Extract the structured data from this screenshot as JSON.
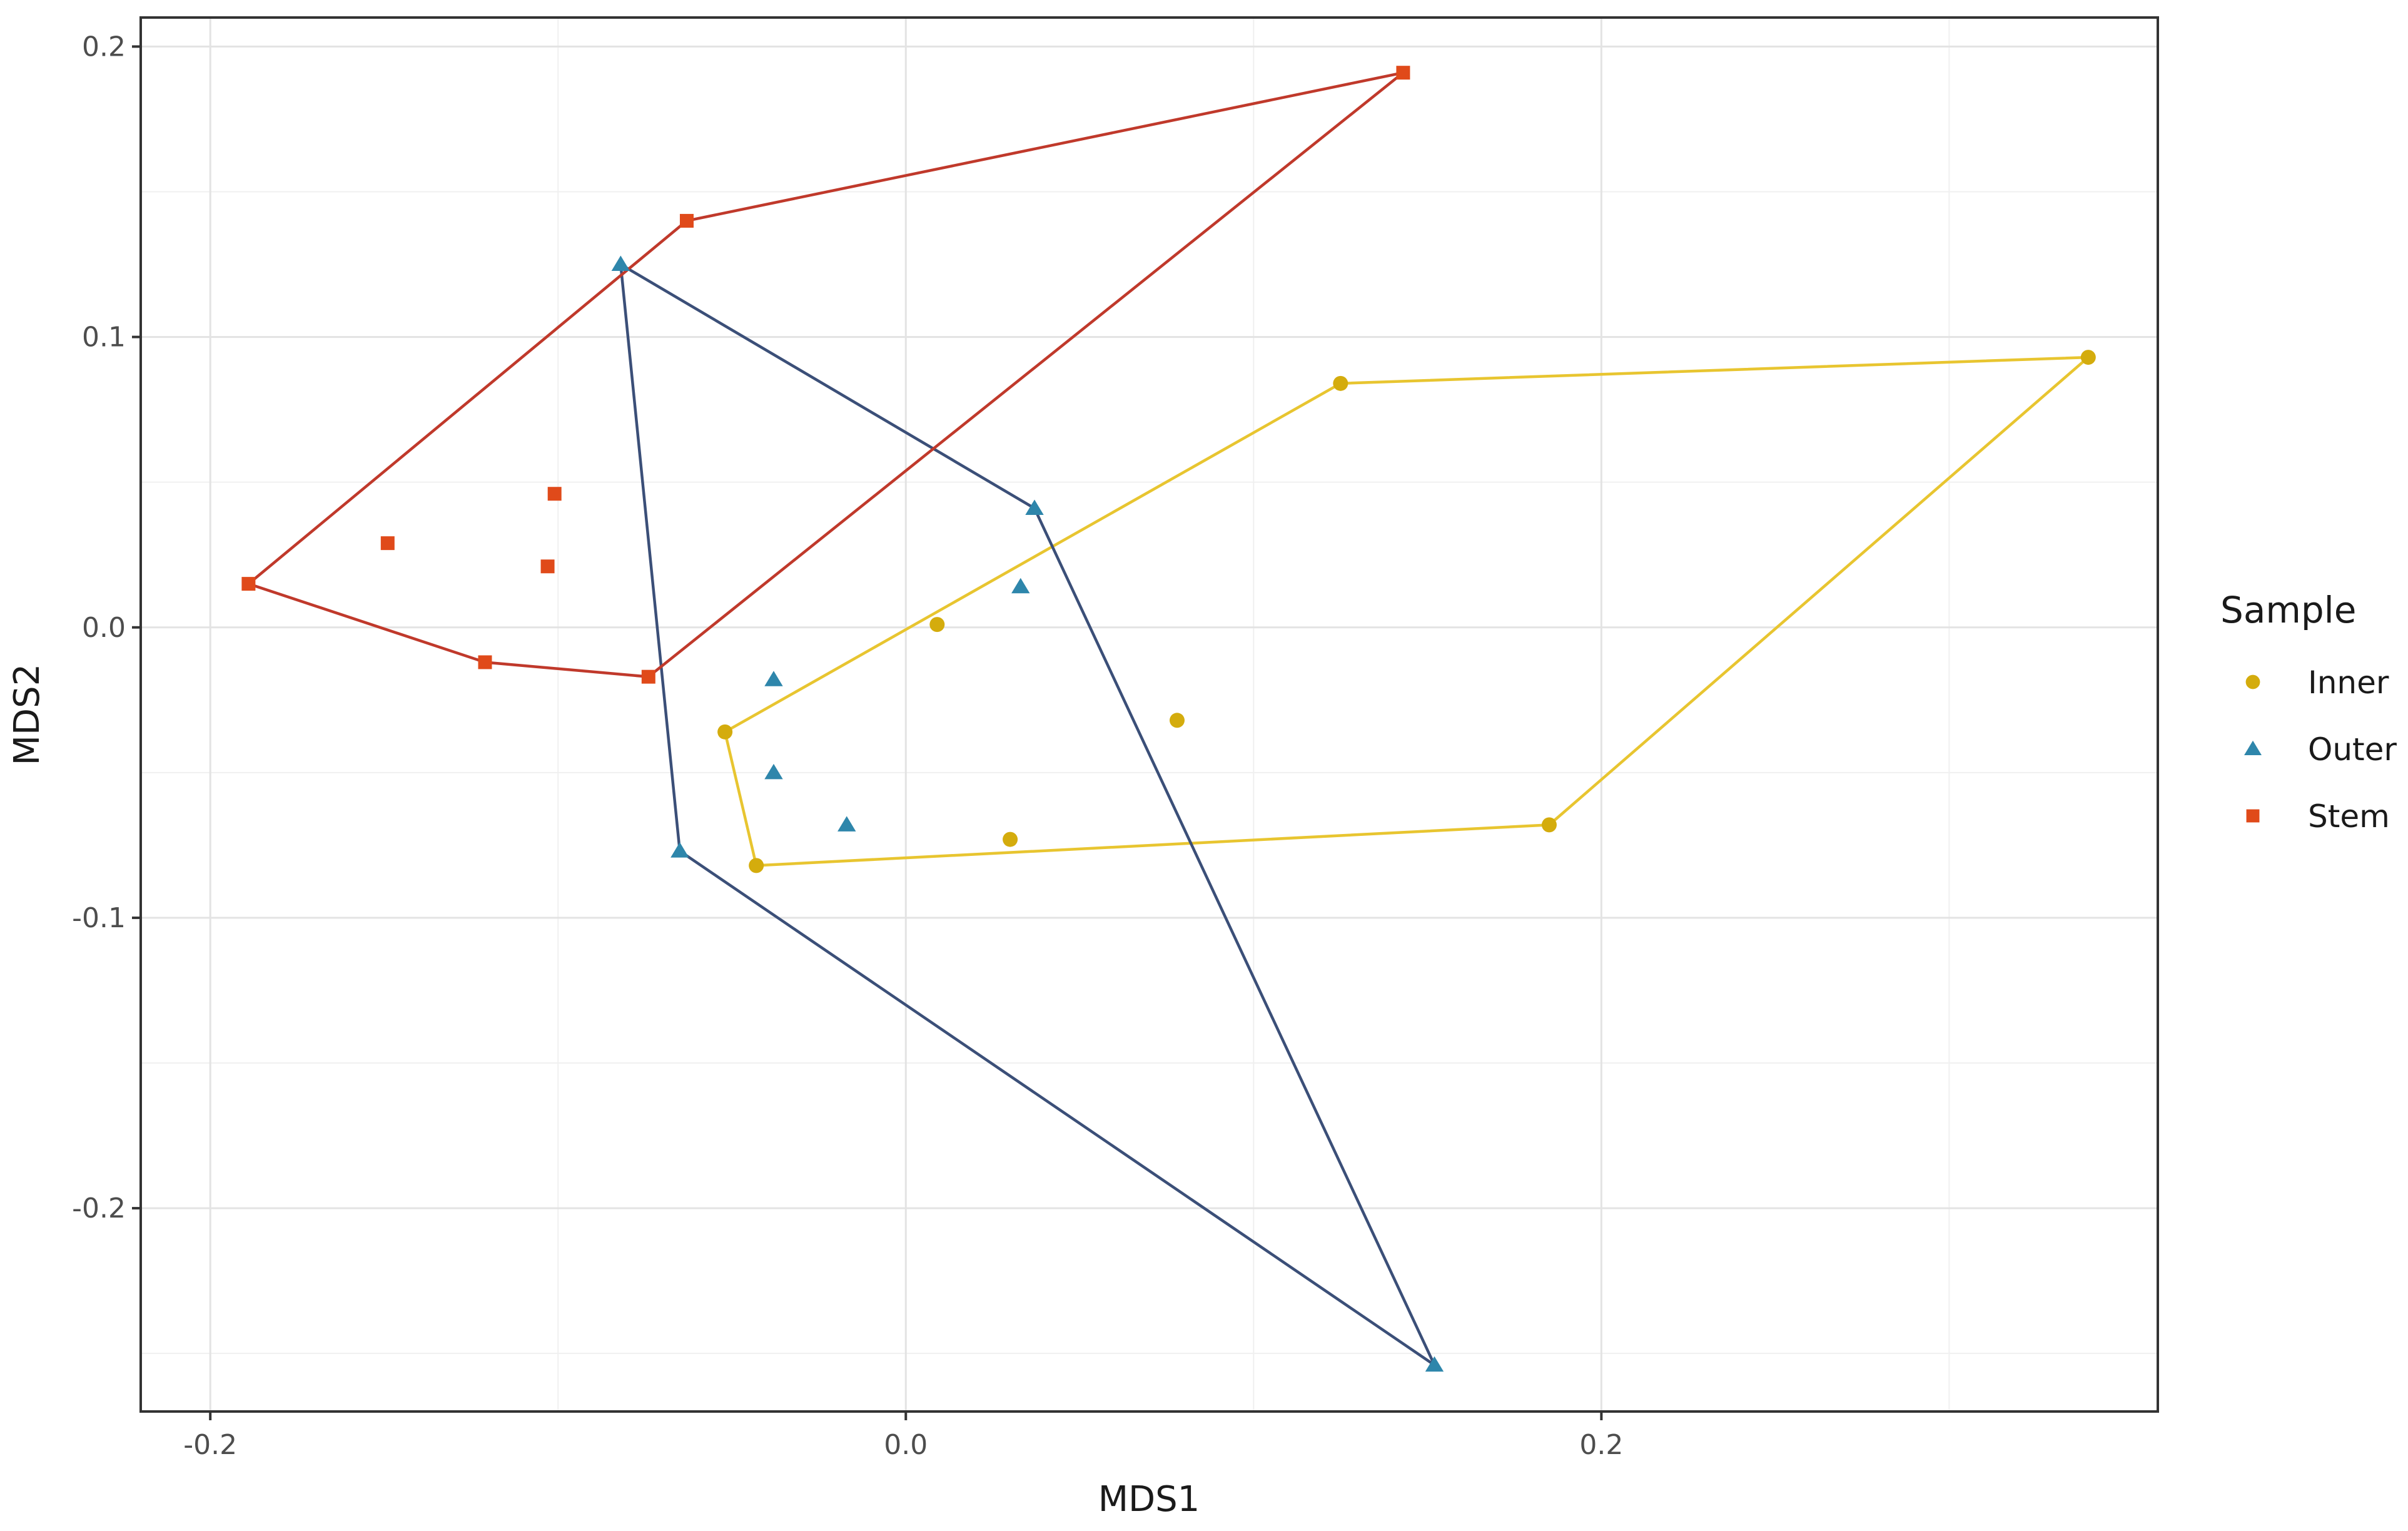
{
  "chart_data": {
    "type": "scatter",
    "title": "",
    "xlabel": "MDS1",
    "ylabel": "MDS2",
    "xlim": [
      -0.22,
      0.36
    ],
    "ylim": [
      -0.27,
      0.21
    ],
    "x_ticks": [
      {
        "value": -0.2,
        "label": "-0.2"
      },
      {
        "value": 0.0,
        "label": "0.0"
      },
      {
        "value": 0.2,
        "label": "0.2"
      }
    ],
    "y_ticks": [
      {
        "value": 0.2,
        "label": "0.2"
      },
      {
        "value": 0.1,
        "label": "0.1"
      },
      {
        "value": 0.0,
        "label": "0.0"
      },
      {
        "value": -0.1,
        "label": "-0.1"
      },
      {
        "value": -0.2,
        "label": "-0.2"
      }
    ],
    "x_minor_grid": [
      -0.1,
      0.1,
      0.3
    ],
    "y_minor_grid": [
      0.15,
      0.05,
      -0.05,
      -0.15,
      -0.25
    ],
    "grid": true,
    "legend": {
      "title": "Sample",
      "placement": "right"
    },
    "series": [
      {
        "name": "Inner",
        "color": "#D4AC0D",
        "line_color": "#E8C530",
        "marker": "circle",
        "points": [
          {
            "x": -0.052,
            "y": -0.036
          },
          {
            "x": -0.043,
            "y": -0.082
          },
          {
            "x": 0.009,
            "y": 0.001
          },
          {
            "x": 0.03,
            "y": -0.073
          },
          {
            "x": 0.078,
            "y": -0.032
          },
          {
            "x": 0.125,
            "y": 0.084
          },
          {
            "x": 0.185,
            "y": -0.068
          },
          {
            "x": 0.34,
            "y": 0.093
          }
        ],
        "hull": [
          {
            "x": -0.052,
            "y": -0.036
          },
          {
            "x": 0.125,
            "y": 0.084
          },
          {
            "x": 0.34,
            "y": 0.093
          },
          {
            "x": 0.185,
            "y": -0.068
          },
          {
            "x": -0.043,
            "y": -0.082
          }
        ]
      },
      {
        "name": "Outer",
        "color": "#2E86AB",
        "line_color": "#3B4F78",
        "marker": "triangle",
        "points": [
          {
            "x": -0.082,
            "y": 0.125
          },
          {
            "x": -0.065,
            "y": -0.077
          },
          {
            "x": -0.038,
            "y": -0.018
          },
          {
            "x": -0.038,
            "y": -0.05
          },
          {
            "x": -0.017,
            "y": -0.068
          },
          {
            "x": 0.033,
            "y": 0.014
          },
          {
            "x": 0.037,
            "y": 0.041
          },
          {
            "x": 0.152,
            "y": -0.254
          }
        ],
        "hull": [
          {
            "x": -0.082,
            "y": 0.125
          },
          {
            "x": 0.037,
            "y": 0.041
          },
          {
            "x": 0.152,
            "y": -0.254
          },
          {
            "x": -0.065,
            "y": -0.077
          }
        ]
      },
      {
        "name": "Stem",
        "color": "#E04A1A",
        "line_color": "#C0392B",
        "marker": "square",
        "points": [
          {
            "x": -0.189,
            "y": 0.015
          },
          {
            "x": -0.149,
            "y": 0.029
          },
          {
            "x": -0.121,
            "y": -0.012
          },
          {
            "x": -0.103,
            "y": 0.021
          },
          {
            "x": -0.101,
            "y": 0.046
          },
          {
            "x": -0.074,
            "y": -0.017
          },
          {
            "x": -0.063,
            "y": 0.14
          },
          {
            "x": 0.143,
            "y": 0.191
          }
        ],
        "hull": [
          {
            "x": -0.189,
            "y": 0.015
          },
          {
            "x": -0.063,
            "y": 0.14
          },
          {
            "x": 0.143,
            "y": 0.191
          },
          {
            "x": -0.074,
            "y": -0.017
          },
          {
            "x": -0.121,
            "y": -0.012
          }
        ]
      }
    ]
  }
}
